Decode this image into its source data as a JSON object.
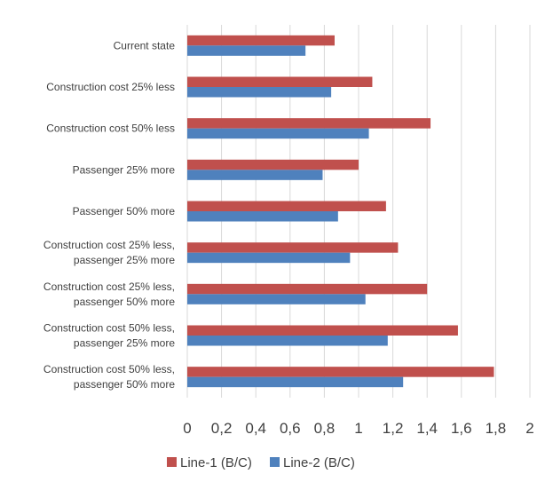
{
  "chart_data": {
    "type": "bar",
    "orientation": "horizontal",
    "categories": [
      [
        "Current state"
      ],
      [
        "Construction cost 25% less"
      ],
      [
        "Construction cost 50% less"
      ],
      [
        "Passenger 25% more"
      ],
      [
        "Passenger 50% more"
      ],
      [
        "Construction cost 25% less,",
        "passenger 25% more"
      ],
      [
        "Construction cost 25% less,",
        "passenger 50% more"
      ],
      [
        "Construction cost 50% less,",
        "passenger 25% more"
      ],
      [
        "Construction cost 50% less,",
        "passenger 50% more"
      ]
    ],
    "series": [
      {
        "name": "Line-1 (B/C)",
        "color": "#c0504d",
        "values": [
          0.86,
          1.08,
          1.42,
          1.0,
          1.16,
          1.23,
          1.4,
          1.58,
          1.79
        ]
      },
      {
        "name": "Line-2 (B/C)",
        "color": "#4f81bd",
        "values": [
          0.69,
          0.84,
          1.06,
          0.79,
          0.88,
          0.95,
          1.04,
          1.17,
          1.26
        ]
      }
    ],
    "xlim": [
      0,
      2
    ],
    "xticks": [
      "0",
      "0,2",
      "0,4",
      "0,6",
      "0,8",
      "1",
      "1,2",
      "1,4",
      "1,6",
      "1,8",
      "2"
    ],
    "grid": "vertical",
    "legend_position": "bottom"
  }
}
